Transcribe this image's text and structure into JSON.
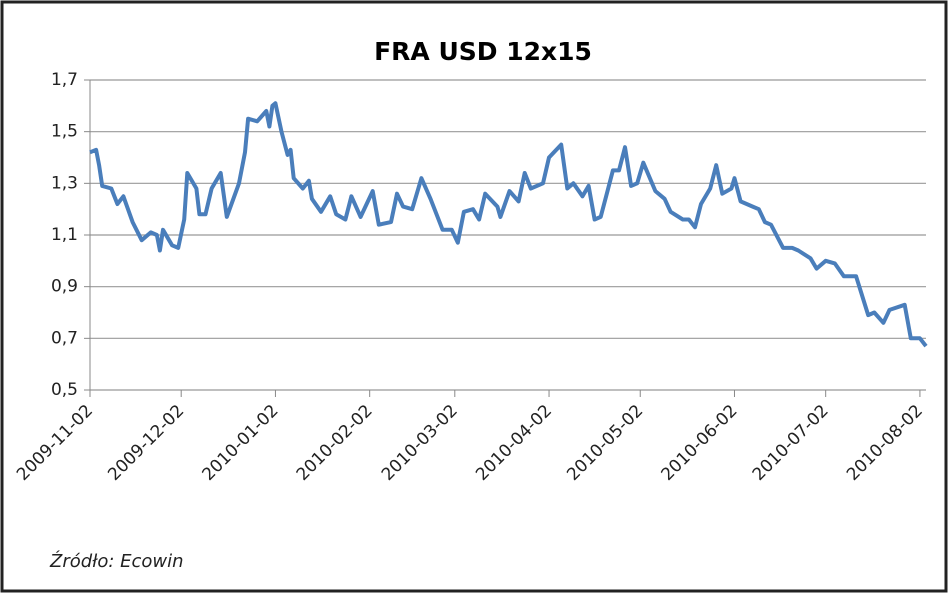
{
  "chart_data": {
    "type": "line",
    "title": "FRA USD 12x15",
    "source": "Źródło: Ecowin",
    "grid": true,
    "xlim": [
      "2009-11-02",
      "2010-08-04"
    ],
    "xticks": [
      "2009-11-02",
      "2009-12-02",
      "2010-01-02",
      "2010-02-02",
      "2010-03-02",
      "2010-04-02",
      "2010-05-02",
      "2010-06-02",
      "2010-07-02",
      "2010-08-02"
    ],
    "ylim": [
      0.5,
      1.7
    ],
    "yticks": [
      {
        "value": 0.5,
        "label": "0,5"
      },
      {
        "value": 0.7,
        "label": "0,7"
      },
      {
        "value": 0.9,
        "label": "0,9"
      },
      {
        "value": 1.1,
        "label": "1,1"
      },
      {
        "value": 1.3,
        "label": "1,3"
      },
      {
        "value": 1.5,
        "label": "1,5"
      },
      {
        "value": 1.7,
        "label": "1,7"
      }
    ],
    "x": [
      "2009-11-02",
      "2009-11-04",
      "2009-11-05",
      "2009-11-06",
      "2009-11-09",
      "2009-11-11",
      "2009-11-13",
      "2009-11-16",
      "2009-11-19",
      "2009-11-22",
      "2009-11-24",
      "2009-11-25",
      "2009-11-26",
      "2009-11-29",
      "2009-12-01",
      "2009-12-03",
      "2009-12-04",
      "2009-12-07",
      "2009-12-08",
      "2009-12-10",
      "2009-12-12",
      "2009-12-15",
      "2009-12-17",
      "2009-12-21",
      "2009-12-23",
      "2009-12-24",
      "2009-12-27",
      "2009-12-30",
      "2009-12-31",
      "2010-01-01",
      "2010-01-02",
      "2010-01-04",
      "2010-01-06",
      "2010-01-07",
      "2010-01-08",
      "2010-01-11",
      "2010-01-13",
      "2010-01-14",
      "2010-01-17",
      "2010-01-20",
      "2010-01-22",
      "2010-01-25",
      "2010-01-27",
      "2010-01-30",
      "2010-02-03",
      "2010-02-05",
      "2010-02-09",
      "2010-02-11",
      "2010-02-13",
      "2010-02-16",
      "2010-02-19",
      "2010-02-22",
      "2010-02-26",
      "2010-03-01",
      "2010-03-03",
      "2010-03-05",
      "2010-03-08",
      "2010-03-10",
      "2010-03-12",
      "2010-03-16",
      "2010-03-17",
      "2010-03-20",
      "2010-03-23",
      "2010-03-25",
      "2010-03-27",
      "2010-03-31",
      "2010-04-02",
      "2010-04-06",
      "2010-04-08",
      "2010-04-10",
      "2010-04-13",
      "2010-04-15",
      "2010-04-17",
      "2010-04-19",
      "2010-04-21",
      "2010-04-23",
      "2010-04-25",
      "2010-04-27",
      "2010-04-29",
      "2010-05-01",
      "2010-05-03",
      "2010-05-07",
      "2010-05-10",
      "2010-05-12",
      "2010-05-16",
      "2010-05-18",
      "2010-05-20",
      "2010-05-22",
      "2010-05-25",
      "2010-05-27",
      "2010-05-29",
      "2010-06-01",
      "2010-06-02",
      "2010-06-04",
      "2010-06-08",
      "2010-06-10",
      "2010-06-12",
      "2010-06-14",
      "2010-06-18",
      "2010-06-21",
      "2010-06-23",
      "2010-06-27",
      "2010-06-29",
      "2010-07-02",
      "2010-07-05",
      "2010-07-08",
      "2010-07-12",
      "2010-07-16",
      "2010-07-18",
      "2010-07-21",
      "2010-07-23",
      "2010-07-28",
      "2010-07-30",
      "2010-08-02",
      "2010-08-04"
    ],
    "series": [
      {
        "name": "FRA USD 12x15",
        "color": "#4a7ebb",
        "values": [
          1.42,
          1.43,
          1.37,
          1.29,
          1.28,
          1.22,
          1.25,
          1.15,
          1.08,
          1.11,
          1.1,
          1.04,
          1.12,
          1.06,
          1.05,
          1.16,
          1.34,
          1.28,
          1.18,
          1.18,
          1.28,
          1.34,
          1.17,
          1.3,
          1.42,
          1.55,
          1.54,
          1.58,
          1.52,
          1.6,
          1.61,
          1.5,
          1.41,
          1.43,
          1.32,
          1.28,
          1.31,
          1.24,
          1.19,
          1.25,
          1.18,
          1.16,
          1.25,
          1.17,
          1.27,
          1.14,
          1.15,
          1.26,
          1.21,
          1.2,
          1.32,
          1.24,
          1.12,
          1.12,
          1.07,
          1.19,
          1.2,
          1.16,
          1.26,
          1.21,
          1.17,
          1.27,
          1.23,
          1.34,
          1.28,
          1.3,
          1.4,
          1.45,
          1.28,
          1.3,
          1.25,
          1.29,
          1.16,
          1.17,
          1.26,
          1.35,
          1.35,
          1.44,
          1.29,
          1.3,
          1.38,
          1.27,
          1.24,
          1.19,
          1.16,
          1.16,
          1.13,
          1.22,
          1.28,
          1.37,
          1.26,
          1.28,
          1.32,
          1.23,
          1.21,
          1.2,
          1.15,
          1.14,
          1.05,
          1.05,
          1.04,
          1.01,
          0.97,
          1.0,
          0.99,
          0.94,
          0.94,
          0.79,
          0.8,
          0.76,
          0.81,
          0.83,
          0.7,
          0.7,
          0.67
        ]
      }
    ]
  }
}
